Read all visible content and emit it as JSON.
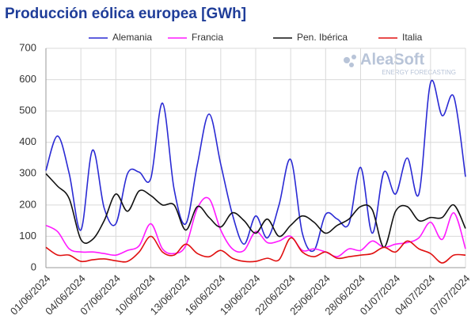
{
  "chart_data": {
    "type": "line",
    "title": "Producción eólica europea [GWh]",
    "logo": {
      "name": "AleaSoft",
      "tagline": "ENERGY FORECASTING"
    },
    "categories": [
      "01/06/2024",
      null,
      null,
      "04/06/2024",
      null,
      null,
      "07/06/2024",
      null,
      null,
      "10/06/2024",
      null,
      null,
      "13/06/2024",
      null,
      null,
      "16/06/2024",
      null,
      null,
      "19/06/2024",
      null,
      null,
      "22/06/2024",
      null,
      null,
      "25/06/2024",
      null,
      null,
      "28/06/2024",
      null,
      null,
      "01/07/2024",
      null,
      null,
      "04/07/2024",
      null,
      null,
      "07/07/2024"
    ],
    "series": [
      {
        "name": "Alemania",
        "color": "#2a2ad4",
        "values": [
          310,
          420,
          300,
          120,
          375,
          190,
          140,
          300,
          305,
          285,
          525,
          250,
          140,
          330,
          490,
          330,
          170,
          75,
          165,
          95,
          200,
          345,
          110,
          55,
          170,
          155,
          140,
          320,
          110,
          305,
          235,
          350,
          235,
          590,
          485,
          545,
          290
        ]
      },
      {
        "name": "Francia",
        "color": "#ff1aff",
        "values": [
          135,
          115,
          60,
          50,
          50,
          45,
          40,
          55,
          70,
          140,
          60,
          45,
          70,
          190,
          220,
          120,
          60,
          55,
          115,
          80,
          85,
          100,
          55,
          60,
          50,
          35,
          60,
          55,
          85,
          65,
          75,
          80,
          95,
          145,
          90,
          175,
          60
        ]
      },
      {
        "name": "Pen. Ibérica",
        "color": "#111111",
        "values": [
          300,
          260,
          220,
          90,
          90,
          150,
          235,
          180,
          245,
          230,
          200,
          200,
          120,
          195,
          160,
          130,
          175,
          150,
          110,
          155,
          100,
          135,
          165,
          145,
          110,
          135,
          155,
          195,
          185,
          65,
          180,
          195,
          150,
          160,
          160,
          200,
          125
        ]
      },
      {
        "name": "Italia",
        "color": "#e01010",
        "values": [
          65,
          40,
          40,
          20,
          25,
          28,
          22,
          20,
          50,
          100,
          50,
          40,
          75,
          45,
          35,
          55,
          30,
          20,
          20,
          30,
          25,
          95,
          50,
          35,
          50,
          30,
          35,
          40,
          45,
          65,
          50,
          85,
          60,
          45,
          15,
          40,
          40
        ]
      }
    ],
    "ylim": [
      0,
      700
    ],
    "yticks": [
      0,
      100,
      200,
      300,
      400,
      500,
      600,
      700
    ],
    "grid": true,
    "legend": "top"
  }
}
